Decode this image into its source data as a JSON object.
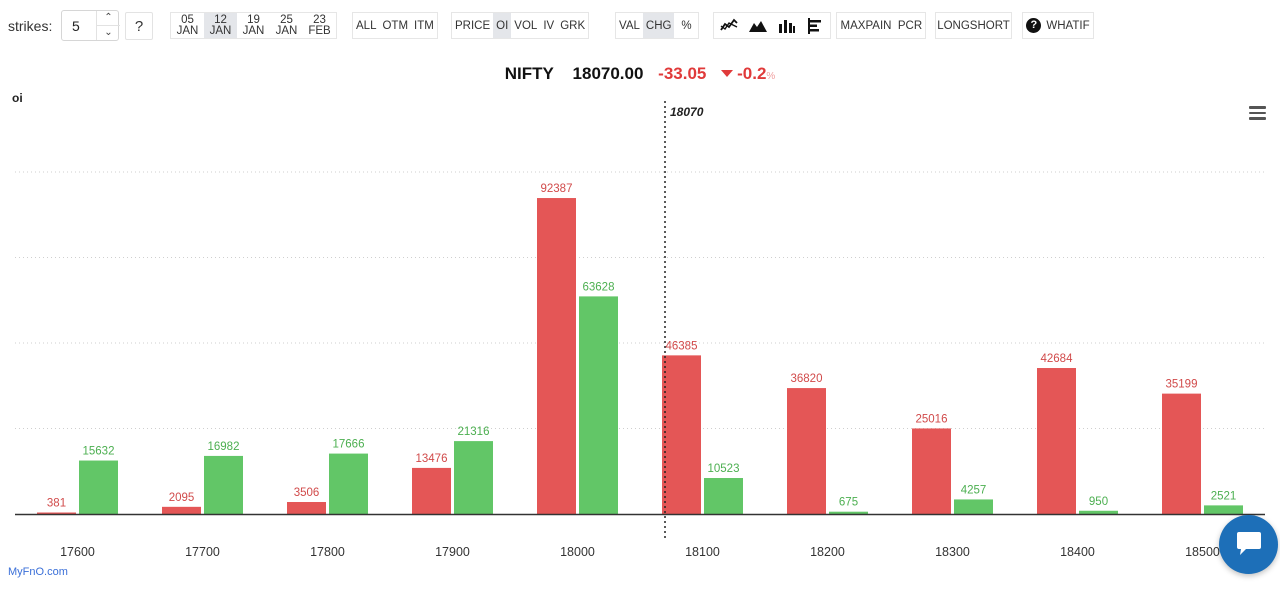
{
  "toolbar": {
    "strikes_label": "strikes:",
    "strikes_value": "5",
    "help_label": "?",
    "expiries": [
      {
        "day": "05",
        "month": "JAN",
        "active": false
      },
      {
        "day": "12",
        "month": "JAN",
        "active": true
      },
      {
        "day": "19",
        "month": "JAN",
        "active": false
      },
      {
        "day": "25",
        "month": "JAN",
        "active": false
      },
      {
        "day": "23",
        "month": "FEB",
        "active": false
      }
    ],
    "moneyness": [
      "ALL",
      "OTM",
      "ITM"
    ],
    "metrics": [
      {
        "label": "PRICE",
        "active": false
      },
      {
        "label": "OI",
        "active": true
      },
      {
        "label": "VOL",
        "active": false
      },
      {
        "label": "IV",
        "active": false
      },
      {
        "label": "GRK",
        "active": false
      }
    ],
    "modes": [
      {
        "label": "VAL",
        "active": false
      },
      {
        "label": "CHG",
        "active": true
      },
      {
        "label": "%",
        "active": false
      }
    ],
    "chart_type_icons": [
      "line-chart-icon",
      "area-chart-icon",
      "bar-chart-icon",
      "horizontal-bar-icon"
    ],
    "maxpain_label": "MAXPAIN",
    "pcr_label": "PCR",
    "longshort_label": "LONGSHORT",
    "whatif_label": "WHATIF"
  },
  "headline": {
    "symbol": "NIFTY",
    "price": "18070.00",
    "change": "-33.05",
    "pct": "-0.2",
    "pct_sign": "%"
  },
  "watermark": "MyFnO.com",
  "colors": {
    "call": "#e45656",
    "put": "#62c667",
    "call_label": "#d14a4a",
    "put_label": "#4caf50"
  },
  "chart_data": {
    "type": "bar",
    "ylabel": "oi",
    "categories": [
      "17600",
      "17700",
      "17800",
      "17900",
      "18000",
      "18100",
      "18200",
      "18300",
      "18400",
      "18500"
    ],
    "series": [
      {
        "values": [
          381,
          2095,
          3506,
          13476,
          92387,
          46385,
          36820,
          25016,
          42684,
          35199
        ]
      },
      {
        "values": [
          15632,
          16982,
          17666,
          21316,
          63628,
          10523,
          675,
          4257,
          950,
          2521
        ]
      }
    ],
    "ylim": [
      0,
      100000
    ],
    "grid": true,
    "spot_marker": {
      "value": 18070,
      "label": "18070"
    }
  }
}
